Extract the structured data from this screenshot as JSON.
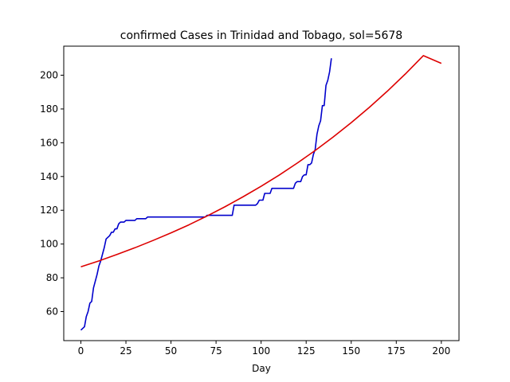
{
  "chart_data": {
    "type": "line",
    "title": "confirmed Cases in Trinidad and Tobago, sol=5678",
    "xlabel": "Day",
    "ylabel": "",
    "xlim": [
      -9.5,
      209.8
    ],
    "ylim": [
      42.8,
      217.2
    ],
    "x_ticks": [
      0,
      25,
      50,
      75,
      100,
      125,
      150,
      175,
      200
    ],
    "y_ticks": [
      60,
      80,
      100,
      120,
      140,
      160,
      180,
      200
    ],
    "grid": false,
    "series": [
      {
        "color": "#0000cc",
        "points": [
          [
            0,
            49
          ],
          [
            1,
            50
          ],
          [
            2,
            51
          ],
          [
            3,
            57
          ],
          [
            4,
            60
          ],
          [
            5,
            65
          ],
          [
            6,
            66
          ],
          [
            7,
            74
          ],
          [
            8,
            78
          ],
          [
            9,
            82
          ],
          [
            10,
            87
          ],
          [
            11,
            90
          ],
          [
            12,
            94
          ],
          [
            13,
            98
          ],
          [
            14,
            103
          ],
          [
            15,
            104
          ],
          [
            16,
            105
          ],
          [
            17,
            107
          ],
          [
            18,
            107
          ],
          [
            19,
            109
          ],
          [
            20,
            109
          ],
          [
            21,
            112
          ],
          [
            22,
            113
          ],
          [
            23,
            113
          ],
          [
            24,
            113
          ],
          [
            25,
            114
          ],
          [
            26,
            114
          ],
          [
            27,
            114
          ],
          [
            28,
            114
          ],
          [
            29,
            114
          ],
          [
            30,
            114
          ],
          [
            31,
            115
          ],
          [
            32,
            115
          ],
          [
            33,
            115
          ],
          [
            34,
            115
          ],
          [
            35,
            115
          ],
          [
            36,
            115
          ],
          [
            37,
            116
          ],
          [
            38,
            116
          ],
          [
            39,
            116
          ],
          [
            40,
            116
          ],
          [
            41,
            116
          ],
          [
            42,
            116
          ],
          [
            43,
            116
          ],
          [
            44,
            116
          ],
          [
            45,
            116
          ],
          [
            46,
            116
          ],
          [
            47,
            116
          ],
          [
            48,
            116
          ],
          [
            49,
            116
          ],
          [
            50,
            116
          ],
          [
            51,
            116
          ],
          [
            52,
            116
          ],
          [
            53,
            116
          ],
          [
            54,
            116
          ],
          [
            55,
            116
          ],
          [
            56,
            116
          ],
          [
            57,
            116
          ],
          [
            58,
            116
          ],
          [
            59,
            116
          ],
          [
            60,
            116
          ],
          [
            61,
            116
          ],
          [
            62,
            116
          ],
          [
            63,
            116
          ],
          [
            64,
            116
          ],
          [
            65,
            116
          ],
          [
            66,
            116
          ],
          [
            67,
            116
          ],
          [
            68,
            116
          ],
          [
            69,
            116
          ],
          [
            70,
            117
          ],
          [
            71,
            117
          ],
          [
            72,
            117
          ],
          [
            73,
            117
          ],
          [
            74,
            117
          ],
          [
            75,
            117
          ],
          [
            76,
            117
          ],
          [
            77,
            117
          ],
          [
            78,
            117
          ],
          [
            79,
            117
          ],
          [
            80,
            117
          ],
          [
            81,
            117
          ],
          [
            82,
            117
          ],
          [
            83,
            117
          ],
          [
            84,
            117
          ],
          [
            85,
            123
          ],
          [
            86,
            123
          ],
          [
            87,
            123
          ],
          [
            88,
            123
          ],
          [
            89,
            123
          ],
          [
            90,
            123
          ],
          [
            91,
            123
          ],
          [
            92,
            123
          ],
          [
            93,
            123
          ],
          [
            94,
            123
          ],
          [
            95,
            123
          ],
          [
            96,
            123
          ],
          [
            97,
            123
          ],
          [
            98,
            124
          ],
          [
            99,
            126
          ],
          [
            100,
            126
          ],
          [
            101,
            126
          ],
          [
            102,
            130
          ],
          [
            103,
            130
          ],
          [
            104,
            130
          ],
          [
            105,
            130
          ],
          [
            106,
            133
          ],
          [
            107,
            133
          ],
          [
            108,
            133
          ],
          [
            109,
            133
          ],
          [
            110,
            133
          ],
          [
            111,
            133
          ],
          [
            112,
            133
          ],
          [
            113,
            133
          ],
          [
            114,
            133
          ],
          [
            115,
            133
          ],
          [
            116,
            133
          ],
          [
            117,
            133
          ],
          [
            118,
            133
          ],
          [
            119,
            136
          ],
          [
            120,
            137
          ],
          [
            121,
            137
          ],
          [
            122,
            137
          ],
          [
            123,
            140
          ],
          [
            124,
            141
          ],
          [
            125,
            141
          ],
          [
            126,
            147
          ],
          [
            127,
            147
          ],
          [
            128,
            148
          ],
          [
            129,
            153
          ],
          [
            130,
            156
          ],
          [
            131,
            165
          ],
          [
            132,
            170
          ],
          [
            133,
            173
          ],
          [
            134,
            182
          ],
          [
            135,
            182
          ],
          [
            136,
            194
          ],
          [
            137,
            197
          ],
          [
            138,
            202
          ],
          [
            139,
            210
          ]
        ]
      },
      {
        "color": "#dd0000",
        "points": [
          [
            0,
            86.5
          ],
          [
            10,
            90.0
          ],
          [
            20,
            93.8
          ],
          [
            30,
            97.8
          ],
          [
            40,
            102.1
          ],
          [
            50,
            106.6
          ],
          [
            60,
            111.4
          ],
          [
            70,
            116.6
          ],
          [
            80,
            122.1
          ],
          [
            90,
            128.0
          ],
          [
            100,
            134.2
          ],
          [
            110,
            140.8
          ],
          [
            120,
            147.9
          ],
          [
            130,
            155.4
          ],
          [
            140,
            163.4
          ],
          [
            150,
            171.9
          ],
          [
            160,
            180.9
          ],
          [
            170,
            190.5
          ],
          [
            180,
            200.7
          ],
          [
            190,
            211.6
          ],
          [
            200,
            207.0
          ]
        ]
      }
    ]
  }
}
